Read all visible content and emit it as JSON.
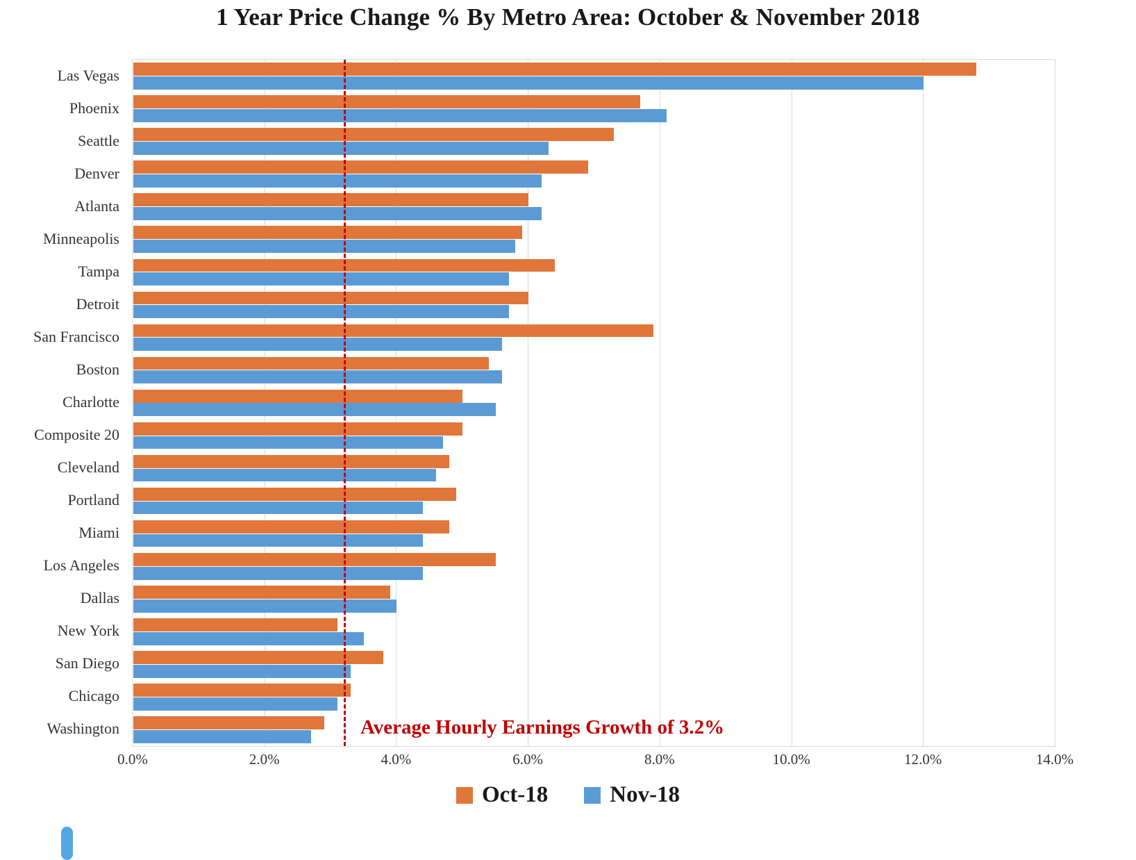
{
  "title": "1 Year Price Change % By Metro Area: October & November 2018",
  "chart_data": {
    "type": "bar",
    "orientation": "horizontal",
    "title": "1 Year Price Change % By Metro Area: October & November 2018",
    "categories": [
      "Las Vegas",
      "Phoenix",
      "Seattle",
      "Denver",
      "Atlanta",
      "Minneapolis",
      "Tampa",
      "Detroit",
      "San Francisco",
      "Boston",
      "Charlotte",
      "Composite 20",
      "Cleveland",
      "Portland",
      "Miami",
      "Los Angeles",
      "Dallas",
      "New York",
      "San Diego",
      "Chicago",
      "Washington"
    ],
    "series": [
      {
        "name": "Oct-18",
        "color": "#E0763A",
        "values": [
          12.8,
          7.7,
          7.3,
          6.9,
          6.0,
          5.9,
          6.4,
          6.0,
          7.9,
          5.4,
          5.0,
          5.0,
          4.8,
          4.9,
          4.8,
          5.5,
          3.9,
          3.1,
          3.8,
          3.3,
          2.9
        ]
      },
      {
        "name": "Nov-18",
        "color": "#5B9BD5",
        "values": [
          12.0,
          8.1,
          6.3,
          6.2,
          6.2,
          5.8,
          5.7,
          5.7,
          5.6,
          5.6,
          5.5,
          4.7,
          4.6,
          4.4,
          4.4,
          4.4,
          4.0,
          3.5,
          3.3,
          3.1,
          2.7
        ]
      }
    ],
    "x_ticks": [
      "0.0%",
      "2.0%",
      "4.0%",
      "6.0%",
      "8.0%",
      "10.0%",
      "12.0%",
      "14.0%"
    ],
    "xlim": [
      0,
      14
    ],
    "grid": true,
    "legend_position": "bottom",
    "reference_line": {
      "value": 3.2,
      "label": "Average Hourly Earnings Growth of 3.2%",
      "color": "#C00000"
    },
    "legend": [
      {
        "label": "Oct-18",
        "color": "#E0763A"
      },
      {
        "label": "Nov-18",
        "color": "#5B9BD5"
      }
    ]
  }
}
